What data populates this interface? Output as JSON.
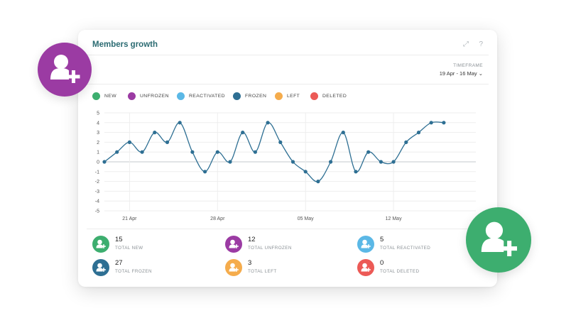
{
  "card": {
    "title": "Members growth",
    "expand_icon": "expand-icon",
    "help_icon": "help-icon",
    "expand_glyph": "⤢",
    "help_glyph": "?"
  },
  "timeframe": {
    "label": "TIMEFRAME",
    "value": "19 Apr - 16 May ⌄"
  },
  "legend": [
    {
      "label": "NEW",
      "color": "#3dae6f"
    },
    {
      "label": "UNFROZEN",
      "color": "#9b3ba3"
    },
    {
      "label": "REACTIVATED",
      "color": "#5bb8e6"
    },
    {
      "label": "FROZEN",
      "color": "#2e6f93"
    },
    {
      "label": "LEFT",
      "color": "#f5ac4c"
    },
    {
      "label": "DELETED",
      "color": "#ec5a56"
    }
  ],
  "chart_data": {
    "type": "line",
    "x_start_label": "19 Apr",
    "x": [
      "19 Apr",
      "20 Apr",
      "21 Apr",
      "22 Apr",
      "23 Apr",
      "24 Apr",
      "25 Apr",
      "26 Apr",
      "27 Apr",
      "28 Apr",
      "29 Apr",
      "30 Apr",
      "01 May",
      "02 May",
      "03 May",
      "04 May",
      "05 May",
      "06 May",
      "07 May",
      "08 May",
      "09 May",
      "10 May",
      "11 May",
      "12 May",
      "13 May",
      "14 May",
      "15 May",
      "16 May"
    ],
    "x_tick_labels": [
      "21 Apr",
      "28 Apr",
      "05 May",
      "12 May"
    ],
    "series": [
      {
        "color": "#2e6f93",
        "values": [
          0,
          1,
          2,
          1,
          3,
          2,
          4,
          1,
          -1,
          1,
          0,
          3,
          1,
          4,
          2,
          0,
          -1,
          -2,
          0,
          3,
          -1,
          1,
          0,
          0,
          2,
          3,
          4,
          4
        ]
      }
    ],
    "ylim": [
      -5,
      5
    ],
    "y_ticks": [
      5,
      4,
      3,
      2,
      1,
      0,
      -1,
      -2,
      -3,
      -4,
      -5
    ],
    "grid": true
  },
  "stats": [
    {
      "value": "15",
      "label": "TOTAL NEW",
      "color": "#3dae6f",
      "icon": "add-user-icon"
    },
    {
      "value": "12",
      "label": "TOTAL UNFROZEN",
      "color": "#9b3ba3",
      "icon": "add-user-icon"
    },
    {
      "value": "5",
      "label": "TOTAL REACTIVATED",
      "color": "#5bb8e6",
      "icon": "reactivate-user-icon"
    },
    {
      "value": "27",
      "label": "TOTAL FROZEN",
      "color": "#2e6f93",
      "icon": "frozen-user-icon"
    },
    {
      "value": "3",
      "label": "TOTAL LEFT",
      "color": "#f5ac4c",
      "icon": "leave-user-icon"
    },
    {
      "value": "0",
      "label": "TOTAL DELETED",
      "color": "#ec5a56",
      "icon": "delete-user-icon"
    }
  ],
  "badges": [
    {
      "name": "purple-add-user-badge",
      "color": "#9b3ba3",
      "icon": "add-user-icon"
    },
    {
      "name": "green-add-user-badge",
      "color": "#3dae6f",
      "icon": "add-user-icon"
    }
  ]
}
